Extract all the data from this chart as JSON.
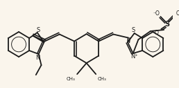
{
  "bg_color": "#faf5ec",
  "line_color": "#1a1a1a",
  "lw": 1.3,
  "figsize": [
    2.58,
    1.27
  ],
  "dpi": 100,
  "xlim": [
    0,
    258
  ],
  "ylim": [
    0,
    127
  ]
}
